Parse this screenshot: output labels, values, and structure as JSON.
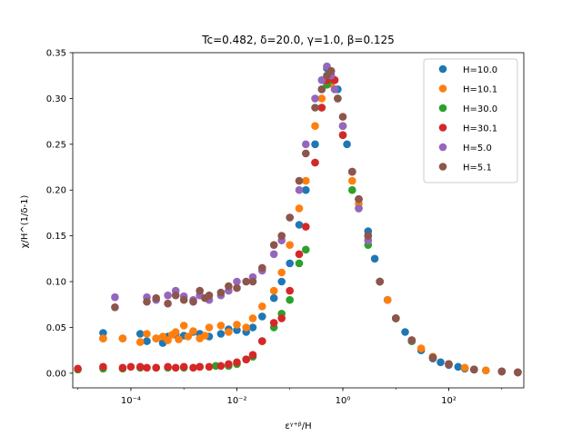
{
  "chart_data": {
    "type": "scatter",
    "title": "Tc=0.482, δ=20.0, γ=1.0, β=0.125",
    "xlabel": "εᵞ⁺ᵝ/H",
    "ylabel": "χ/H^(1/δ-1)",
    "xscale": "log",
    "xlim": [
      8e-06,
      2600.0
    ],
    "ylim": [
      -0.016,
      0.35
    ],
    "grid": false,
    "legend_position": "top-right",
    "x_ticks": [
      {
        "value": 0.0001,
        "label": "10⁻⁴"
      },
      {
        "value": 0.01,
        "label": "10⁻²"
      },
      {
        "value": 1,
        "label": "10⁰"
      },
      {
        "value": 100,
        "label": "10²"
      }
    ],
    "y_ticks": [
      {
        "value": 0.0,
        "label": "0.00"
      },
      {
        "value": 0.05,
        "label": "0.05"
      },
      {
        "value": 0.1,
        "label": "0.10"
      },
      {
        "value": 0.15,
        "label": "0.15"
      },
      {
        "value": 0.2,
        "label": "0.20"
      },
      {
        "value": 0.25,
        "label": "0.25"
      },
      {
        "value": 0.3,
        "label": "0.30"
      },
      {
        "value": 0.35,
        "label": "0.35"
      }
    ],
    "series": [
      {
        "name": "H=10.0",
        "color": "#1f77b4",
        "points": [
          [
            3e-05,
            0.044
          ],
          [
            3e-05,
            0.038
          ],
          [
            7e-05,
            0.038
          ],
          [
            0.00015,
            0.043
          ],
          [
            0.0002,
            0.035
          ],
          [
            0.0003,
            0.038
          ],
          [
            0.0004,
            0.033
          ],
          [
            0.0005,
            0.04
          ],
          [
            0.0007,
            0.042
          ],
          [
            0.001,
            0.041
          ],
          [
            0.0015,
            0.045
          ],
          [
            0.002,
            0.043
          ],
          [
            0.003,
            0.04
          ],
          [
            0.005,
            0.043
          ],
          [
            0.007,
            0.048
          ],
          [
            0.01,
            0.047
          ],
          [
            0.015,
            0.045
          ],
          [
            0.02,
            0.05
          ],
          [
            0.03,
            0.062
          ],
          [
            0.05,
            0.082
          ],
          [
            0.07,
            0.1
          ],
          [
            0.1,
            0.12
          ],
          [
            0.15,
            0.162
          ],
          [
            0.2,
            0.2
          ],
          [
            0.3,
            0.25
          ],
          [
            0.4,
            0.31
          ],
          [
            0.5,
            0.333
          ],
          [
            0.6,
            0.325
          ],
          [
            0.7,
            0.32
          ],
          [
            0.8,
            0.31
          ],
          [
            1,
            0.27
          ],
          [
            1.2,
            0.25
          ],
          [
            1.5,
            0.22
          ],
          [
            2,
            0.19
          ],
          [
            3,
            0.155
          ],
          [
            4,
            0.125
          ],
          [
            5,
            0.1
          ],
          [
            7,
            0.08
          ],
          [
            10,
            0.06
          ],
          [
            15,
            0.045
          ],
          [
            20,
            0.035
          ],
          [
            30,
            0.025
          ],
          [
            50,
            0.016
          ],
          [
            70,
            0.012
          ],
          [
            100,
            0.009
          ],
          [
            150,
            0.007
          ],
          [
            200,
            0.005
          ],
          [
            300,
            0.004
          ],
          [
            500,
            0.003
          ],
          [
            1000,
            0.002
          ],
          [
            2000,
            0.001
          ]
        ]
      },
      {
        "name": "H=10.1",
        "color": "#ff7f0e",
        "points": [
          [
            3e-05,
            0.038
          ],
          [
            7e-05,
            0.038
          ],
          [
            0.00015,
            0.034
          ],
          [
            0.0002,
            0.043
          ],
          [
            0.0003,
            0.038
          ],
          [
            0.0004,
            0.04
          ],
          [
            0.0005,
            0.036
          ],
          [
            0.0006,
            0.042
          ],
          [
            0.0007,
            0.045
          ],
          [
            0.0008,
            0.037
          ],
          [
            0.001,
            0.052
          ],
          [
            0.0012,
            0.04
          ],
          [
            0.0015,
            0.046
          ],
          [
            0.002,
            0.038
          ],
          [
            0.0025,
            0.041
          ],
          [
            0.003,
            0.05
          ],
          [
            0.005,
            0.052
          ],
          [
            0.007,
            0.045
          ],
          [
            0.01,
            0.053
          ],
          [
            0.015,
            0.05
          ],
          [
            0.02,
            0.06
          ],
          [
            0.03,
            0.073
          ],
          [
            0.05,
            0.09
          ],
          [
            0.07,
            0.11
          ],
          [
            0.1,
            0.14
          ],
          [
            0.15,
            0.18
          ],
          [
            0.2,
            0.21
          ],
          [
            0.3,
            0.27
          ],
          [
            0.4,
            0.3
          ],
          [
            0.5,
            0.32
          ],
          [
            0.6,
            0.316
          ],
          [
            0.7,
            0.31
          ],
          [
            1,
            0.27
          ],
          [
            1.5,
            0.21
          ],
          [
            2,
            0.185
          ],
          [
            3,
            0.145
          ],
          [
            5,
            0.1
          ],
          [
            7,
            0.08
          ],
          [
            10,
            0.06
          ],
          [
            20,
            0.036
          ],
          [
            30,
            0.027
          ],
          [
            50,
            0.018
          ],
          [
            100,
            0.01
          ],
          [
            200,
            0.006
          ],
          [
            500,
            0.003
          ],
          [
            1000,
            0.002
          ],
          [
            2000,
            0.001
          ]
        ]
      },
      {
        "name": "H=30.0",
        "color": "#2ca02c",
        "points": [
          [
            1e-05,
            0.004
          ],
          [
            3e-05,
            0.005
          ],
          [
            7e-05,
            0.005
          ],
          [
            0.00015,
            0.006
          ],
          [
            0.0003,
            0.006
          ],
          [
            0.0005,
            0.006
          ],
          [
            0.001,
            0.006
          ],
          [
            0.002,
            0.007
          ],
          [
            0.004,
            0.008
          ],
          [
            0.007,
            0.008
          ],
          [
            0.01,
            0.01
          ],
          [
            0.015,
            0.015
          ],
          [
            0.02,
            0.018
          ],
          [
            0.03,
            0.035
          ],
          [
            0.05,
            0.05
          ],
          [
            0.07,
            0.065
          ],
          [
            0.1,
            0.08
          ],
          [
            0.15,
            0.12
          ],
          [
            0.2,
            0.135
          ],
          [
            0.3,
            0.23
          ],
          [
            0.4,
            0.29
          ],
          [
            0.5,
            0.315
          ],
          [
            0.6,
            0.32
          ],
          [
            0.8,
            0.3
          ],
          [
            1,
            0.26
          ],
          [
            1.5,
            0.2
          ],
          [
            2,
            0.18
          ],
          [
            3,
            0.14
          ],
          [
            5,
            0.1
          ],
          [
            10,
            0.06
          ],
          [
            20,
            0.035
          ],
          [
            50,
            0.017
          ],
          [
            100,
            0.01
          ],
          [
            300,
            0.004
          ],
          [
            1000,
            0.002
          ],
          [
            2000,
            0.001
          ]
        ]
      },
      {
        "name": "H=30.1",
        "color": "#d62728",
        "points": [
          [
            1e-05,
            0.005
          ],
          [
            3e-05,
            0.007
          ],
          [
            7e-05,
            0.006
          ],
          [
            0.0001,
            0.007
          ],
          [
            0.00015,
            0.007
          ],
          [
            0.0002,
            0.006
          ],
          [
            0.0003,
            0.006
          ],
          [
            0.0005,
            0.007
          ],
          [
            0.0007,
            0.006
          ],
          [
            0.001,
            0.007
          ],
          [
            0.0015,
            0.006
          ],
          [
            0.002,
            0.007
          ],
          [
            0.003,
            0.007
          ],
          [
            0.005,
            0.008
          ],
          [
            0.007,
            0.01
          ],
          [
            0.01,
            0.012
          ],
          [
            0.015,
            0.015
          ],
          [
            0.02,
            0.02
          ],
          [
            0.03,
            0.035
          ],
          [
            0.05,
            0.055
          ],
          [
            0.07,
            0.06
          ],
          [
            0.1,
            0.09
          ],
          [
            0.15,
            0.13
          ],
          [
            0.2,
            0.16
          ],
          [
            0.3,
            0.23
          ],
          [
            0.4,
            0.29
          ],
          [
            0.5,
            0.32
          ],
          [
            0.6,
            0.33
          ],
          [
            0.7,
            0.32
          ],
          [
            1,
            0.26
          ],
          [
            1.5,
            0.22
          ],
          [
            2,
            0.19
          ],
          [
            3,
            0.15
          ],
          [
            5,
            0.1
          ],
          [
            10,
            0.06
          ],
          [
            20,
            0.036
          ],
          [
            50,
            0.017
          ],
          [
            100,
            0.01
          ],
          [
            300,
            0.004
          ],
          [
            1000,
            0.002
          ],
          [
            2000,
            0.001
          ]
        ]
      },
      {
        "name": "H=5.0",
        "color": "#9467bd",
        "points": [
          [
            5e-05,
            0.083
          ],
          [
            0.0002,
            0.083
          ],
          [
            0.0003,
            0.08
          ],
          [
            0.0005,
            0.085
          ],
          [
            0.0007,
            0.09
          ],
          [
            0.001,
            0.084
          ],
          [
            0.0015,
            0.08
          ],
          [
            0.002,
            0.085
          ],
          [
            0.003,
            0.08
          ],
          [
            0.005,
            0.085
          ],
          [
            0.007,
            0.09
          ],
          [
            0.01,
            0.1
          ],
          [
            0.015,
            0.1
          ],
          [
            0.02,
            0.105
          ],
          [
            0.03,
            0.112
          ],
          [
            0.05,
            0.13
          ],
          [
            0.07,
            0.145
          ],
          [
            0.1,
            0.17
          ],
          [
            0.15,
            0.2
          ],
          [
            0.2,
            0.25
          ],
          [
            0.3,
            0.3
          ],
          [
            0.4,
            0.32
          ],
          [
            0.5,
            0.335
          ],
          [
            0.6,
            0.325
          ],
          [
            0.7,
            0.31
          ],
          [
            1,
            0.27
          ],
          [
            1.5,
            0.22
          ],
          [
            2,
            0.18
          ],
          [
            3,
            0.145
          ],
          [
            5,
            0.1
          ],
          [
            10,
            0.06
          ],
          [
            20,
            0.036
          ],
          [
            50,
            0.017
          ],
          [
            100,
            0.01
          ],
          [
            300,
            0.004
          ],
          [
            1000,
            0.002
          ],
          [
            2000,
            0.001
          ]
        ]
      },
      {
        "name": "H=5.1",
        "color": "#8c564b",
        "points": [
          [
            5e-05,
            0.072
          ],
          [
            0.0002,
            0.078
          ],
          [
            0.0003,
            0.082
          ],
          [
            0.0005,
            0.076
          ],
          [
            0.0007,
            0.085
          ],
          [
            0.001,
            0.08
          ],
          [
            0.0015,
            0.078
          ],
          [
            0.002,
            0.09
          ],
          [
            0.0025,
            0.082
          ],
          [
            0.003,
            0.085
          ],
          [
            0.005,
            0.088
          ],
          [
            0.007,
            0.095
          ],
          [
            0.01,
            0.093
          ],
          [
            0.015,
            0.1
          ],
          [
            0.02,
            0.1
          ],
          [
            0.03,
            0.115
          ],
          [
            0.05,
            0.14
          ],
          [
            0.07,
            0.15
          ],
          [
            0.1,
            0.17
          ],
          [
            0.15,
            0.21
          ],
          [
            0.2,
            0.24
          ],
          [
            0.3,
            0.29
          ],
          [
            0.4,
            0.31
          ],
          [
            0.5,
            0.325
          ],
          [
            0.6,
            0.33
          ],
          [
            0.8,
            0.3
          ],
          [
            1,
            0.28
          ],
          [
            1.5,
            0.22
          ],
          [
            2,
            0.19
          ],
          [
            3,
            0.15
          ],
          [
            5,
            0.1
          ],
          [
            10,
            0.06
          ],
          [
            20,
            0.036
          ],
          [
            50,
            0.017
          ],
          [
            100,
            0.01
          ],
          [
            300,
            0.004
          ],
          [
            1000,
            0.002
          ],
          [
            2000,
            0.001
          ]
        ]
      }
    ]
  }
}
